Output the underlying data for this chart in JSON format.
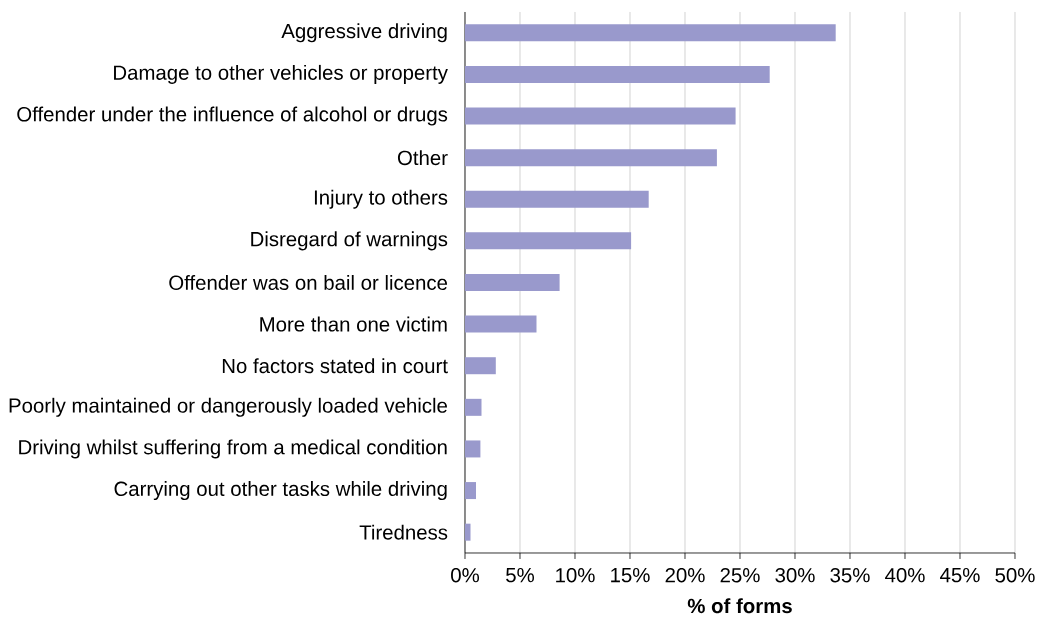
{
  "chart_data": {
    "type": "bar",
    "orientation": "horizontal",
    "xlabel": "% of forms",
    "categories": [
      "Aggressive driving",
      "Damage to other vehicles or property",
      "Offender under the influence of alcohol or drugs",
      "Other",
      "Injury to others",
      "Disregard of warnings",
      "Offender was on bail or licence",
      "More than one victim",
      "No factors stated in court",
      "Poorly maintained or dangerously loaded vehicle",
      "Driving whilst suffering from a medical condition",
      "Carrying out other tasks while driving",
      "Tiredness"
    ],
    "values": [
      33.7,
      27.7,
      24.6,
      22.9,
      16.7,
      15.1,
      8.6,
      6.5,
      2.8,
      1.5,
      1.4,
      1.0,
      0.5
    ],
    "color": "#9999cc",
    "xlim": [
      0,
      50
    ],
    "xticks": [
      {
        "value": 0,
        "label": "0%"
      },
      {
        "value": 5,
        "label": "5%"
      },
      {
        "value": 10,
        "label": "10%"
      },
      {
        "value": 15,
        "label": "15%"
      },
      {
        "value": 20,
        "label": "20%"
      },
      {
        "value": 25,
        "label": "25%"
      },
      {
        "value": 30,
        "label": "30%"
      },
      {
        "value": 35,
        "label": "35%"
      },
      {
        "value": 40,
        "label": "40%"
      },
      {
        "value": 45,
        "label": "45%"
      },
      {
        "value": 50,
        "label": "50%"
      }
    ],
    "grid": "x"
  }
}
